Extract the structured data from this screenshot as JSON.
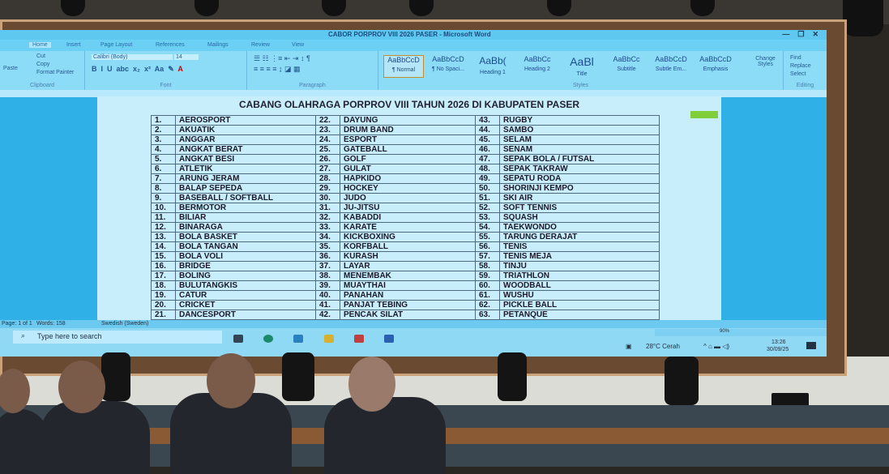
{
  "window": {
    "title": "CABOR PORPROV VIII 2026 PASER - Microsoft Word"
  },
  "ribbon": {
    "tabs": [
      "Home",
      "Insert",
      "Page Layout",
      "References",
      "Mailings",
      "Review",
      "View"
    ],
    "clipboard": {
      "paste": "Paste",
      "cut": "Cut",
      "copy": "Copy",
      "format_painter": "Format Painter",
      "label": "Clipboard"
    },
    "font": {
      "name": "Calibri (Body)",
      "size": "14",
      "label": "Font"
    },
    "paragraph": {
      "label": "Paragraph"
    },
    "styles": {
      "items": [
        {
          "preview": "AaBbCcD",
          "name": "¶ Normal"
        },
        {
          "preview": "AaBbCcD",
          "name": "¶ No Spaci..."
        },
        {
          "preview": "AaBb(",
          "name": "Heading 1"
        },
        {
          "preview": "AaBbCc",
          "name": "Heading 2"
        },
        {
          "preview": "AaBl",
          "name": "Title"
        },
        {
          "preview": "AaBbCc",
          "name": "Subtitle"
        },
        {
          "preview": "AaBbCcD",
          "name": "Subtle Em..."
        },
        {
          "preview": "AaBbCcD",
          "name": "Emphasis"
        }
      ],
      "change": "Change Styles",
      "label": "Styles"
    },
    "editing": {
      "find": "Find",
      "replace": "Replace",
      "select": "Select",
      "label": "Editing"
    }
  },
  "document": {
    "title": "CABANG OLAHRAGA PORPROV VIII TAHUN 2026 DI KABUPATEN PASER",
    "columns": [
      [
        [
          "1.",
          "AEROSPORT"
        ],
        [
          "2.",
          "AKUATIK"
        ],
        [
          "3.",
          "ANGGAR"
        ],
        [
          "4.",
          "ANGKAT BERAT"
        ],
        [
          "5.",
          "ANGKAT BESI"
        ],
        [
          "6.",
          "ATLETIK"
        ],
        [
          "7.",
          "ARUNG JERAM"
        ],
        [
          "8.",
          "BALAP SEPEDA"
        ],
        [
          "9.",
          "BASEBALL / SOFTBALL"
        ],
        [
          "10.",
          "BERMOTOR"
        ],
        [
          "11.",
          "BILIAR"
        ],
        [
          "12.",
          "BINARAGA"
        ],
        [
          "13.",
          "BOLA BASKET"
        ],
        [
          "14.",
          "BOLA TANGAN"
        ],
        [
          "15.",
          "BOLA VOLI"
        ],
        [
          "16.",
          "BRIDGE"
        ],
        [
          "17.",
          "BOLING"
        ],
        [
          "18.",
          "BULUTANGKIS"
        ],
        [
          "19.",
          "CATUR"
        ],
        [
          "20.",
          "CRICKET"
        ],
        [
          "21.",
          "DANCESPORT"
        ]
      ],
      [
        [
          "22.",
          "DAYUNG"
        ],
        [
          "23.",
          "DRUM BAND"
        ],
        [
          "24.",
          "ESPORT"
        ],
        [
          "25.",
          "GATEBALL"
        ],
        [
          "26.",
          "GOLF"
        ],
        [
          "27.",
          "GULAT"
        ],
        [
          "28.",
          "HAPKIDO"
        ],
        [
          "29.",
          "HOCKEY"
        ],
        [
          "30.",
          "JUDO"
        ],
        [
          "31.",
          "JU-JITSU"
        ],
        [
          "32.",
          "KABADDI"
        ],
        [
          "33.",
          "KARATE"
        ],
        [
          "34.",
          "KICKBOXING"
        ],
        [
          "35.",
          "KORFBALL"
        ],
        [
          "36.",
          "KURASH"
        ],
        [
          "37.",
          "LAYAR"
        ],
        [
          "38.",
          "MENEMBAK"
        ],
        [
          "39.",
          "MUAYTHAI"
        ],
        [
          "40.",
          "PANAHAN"
        ],
        [
          "41.",
          "PANJAT TEBING"
        ],
        [
          "42.",
          "PENCAK SILAT"
        ]
      ],
      [
        [
          "43.",
          "RUGBY"
        ],
        [
          "44.",
          "SAMBO"
        ],
        [
          "45.",
          "SELAM"
        ],
        [
          "46.",
          "SENAM"
        ],
        [
          "47.",
          "SEPAK BOLA / FUTSAL"
        ],
        [
          "48.",
          "SEPAK TAKRAW"
        ],
        [
          "49.",
          "SEPATU RODA"
        ],
        [
          "50.",
          "SHORINJI KEMPO"
        ],
        [
          "51.",
          "SKI AIR"
        ],
        [
          "52.",
          "SOFT TENNIS"
        ],
        [
          "53.",
          "SQUASH"
        ],
        [
          "54.",
          "TAEKWONDO"
        ],
        [
          "55.",
          "TARUNG DERAJAT"
        ],
        [
          "56.",
          "TENIS"
        ],
        [
          "57.",
          "TENIS MEJA"
        ],
        [
          "58.",
          "TINJU"
        ],
        [
          "59.",
          "TRIATHLON"
        ],
        [
          "60.",
          "WOODBALL"
        ],
        [
          "61.",
          "WUSHU"
        ],
        [
          "62.",
          "PICKLE BALL"
        ],
        [
          "63.",
          "PETANQUE"
        ]
      ]
    ]
  },
  "status": {
    "page": "Page: 1 of 1",
    "words": "Words: 158",
    "language": "Swedish (Sweden)",
    "zoom": "90%"
  },
  "taskbar": {
    "search_placeholder": "Type here to search",
    "weather": "28°C Cerah",
    "time": "13:26",
    "date": "30/09/25"
  }
}
